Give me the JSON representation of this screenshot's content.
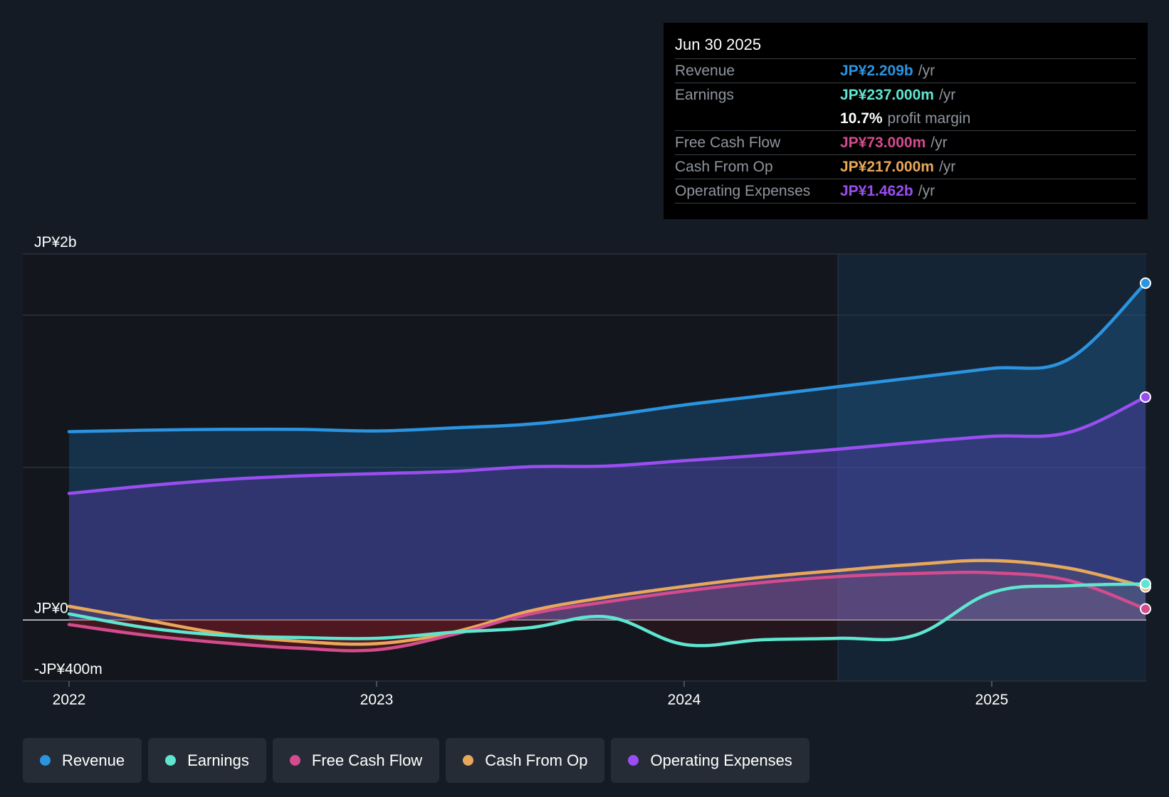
{
  "colors": {
    "revenue": "#2b94e0",
    "earnings": "#5ee6d0",
    "fcf": "#d44b8e",
    "cfo": "#e8a85c",
    "opex": "#9a4ef0"
  },
  "tooltip": {
    "date": "Jun 30 2025",
    "rows": {
      "revenue": {
        "label": "Revenue",
        "value": "JP¥2.209b",
        "unit": "/yr"
      },
      "earnings": {
        "label": "Earnings",
        "value": "JP¥237.000m",
        "unit": "/yr"
      },
      "margin": {
        "value": "10.7%",
        "text": "profit margin"
      },
      "fcf": {
        "label": "Free Cash Flow",
        "value": "JP¥73.000m",
        "unit": "/yr"
      },
      "cfo": {
        "label": "Cash From Op",
        "value": "JP¥217.000m",
        "unit": "/yr"
      },
      "opex": {
        "label": "Operating Expenses",
        "value": "JP¥1.462b",
        "unit": "/yr"
      }
    }
  },
  "legend": {
    "revenue": {
      "label": "Revenue",
      "icon": "revenue-dot-icon"
    },
    "earnings": {
      "label": "Earnings",
      "icon": "earnings-dot-icon"
    },
    "fcf": {
      "label": "Free Cash Flow",
      "icon": "fcf-dot-icon"
    },
    "cfo": {
      "label": "Cash From Op",
      "icon": "cfo-dot-icon"
    },
    "opex": {
      "label": "Operating Expenses",
      "icon": "opex-dot-icon"
    }
  },
  "chart_data": {
    "type": "area",
    "title": "",
    "xlabel": "",
    "ylabel": "",
    "ylim": [
      -400,
      2400
    ],
    "y_unit": "JP¥m",
    "y_tick_labels": [
      {
        "value": 2000,
        "label": "JP¥2b"
      },
      {
        "value": 0,
        "label": "JP¥0"
      },
      {
        "value": -400,
        "label": "-JP¥400m"
      }
    ],
    "gridlines": [
      2000,
      1000,
      0
    ],
    "x_range": [
      2022.0,
      2025.5
    ],
    "x_ticks": [
      {
        "value": 2022,
        "label": "2022"
      },
      {
        "value": 2023,
        "label": "2023"
      },
      {
        "value": 2024,
        "label": "2024"
      },
      {
        "value": 2025,
        "label": "2025"
      }
    ],
    "highlight_start": 2024.5,
    "series": [
      {
        "name": "Revenue",
        "key": "revenue",
        "x": [
          2022.0,
          2022.25,
          2022.5,
          2022.75,
          2023.0,
          2023.25,
          2023.5,
          2023.75,
          2024.0,
          2024.25,
          2024.5,
          2024.75,
          2025.0,
          2025.25,
          2025.5
        ],
        "values": [
          1235,
          1245,
          1250,
          1250,
          1240,
          1260,
          1285,
          1340,
          1410,
          1470,
          1530,
          1590,
          1650,
          1710,
          2209
        ]
      },
      {
        "name": "Operating Expenses",
        "key": "opex",
        "x": [
          2022.0,
          2022.25,
          2022.5,
          2022.75,
          2023.0,
          2023.25,
          2023.5,
          2023.75,
          2024.0,
          2024.25,
          2024.5,
          2024.75,
          2025.0,
          2025.25,
          2025.5
        ],
        "values": [
          830,
          880,
          920,
          945,
          960,
          975,
          1005,
          1010,
          1045,
          1080,
          1120,
          1165,
          1205,
          1230,
          1462
        ]
      },
      {
        "name": "Cash From Op",
        "key": "cfo",
        "x": [
          2022.0,
          2022.25,
          2022.5,
          2022.75,
          2023.0,
          2023.25,
          2023.5,
          2023.75,
          2024.0,
          2024.25,
          2024.5,
          2024.75,
          2025.0,
          2025.25,
          2025.5
        ],
        "values": [
          90,
          0,
          -90,
          -140,
          -155,
          -80,
          60,
          150,
          220,
          280,
          325,
          365,
          390,
          340,
          217
        ]
      },
      {
        "name": "Free Cash Flow",
        "key": "fcf",
        "x": [
          2022.0,
          2022.25,
          2022.5,
          2022.75,
          2023.0,
          2023.25,
          2023.5,
          2023.75,
          2024.0,
          2024.25,
          2024.5,
          2024.75,
          2025.0,
          2025.25,
          2025.5
        ],
        "values": [
          -30,
          -100,
          -150,
          -185,
          -195,
          -95,
          40,
          120,
          190,
          245,
          285,
          305,
          310,
          260,
          73
        ]
      },
      {
        "name": "Earnings",
        "key": "earnings",
        "x": [
          2022.0,
          2022.25,
          2022.5,
          2022.75,
          2023.0,
          2023.25,
          2023.5,
          2023.75,
          2024.0,
          2024.25,
          2024.5,
          2024.75,
          2025.0,
          2025.25,
          2025.5
        ],
        "values": [
          40,
          -50,
          -100,
          -115,
          -120,
          -80,
          -50,
          20,
          -160,
          -130,
          -120,
          -100,
          180,
          225,
          237
        ]
      }
    ]
  }
}
